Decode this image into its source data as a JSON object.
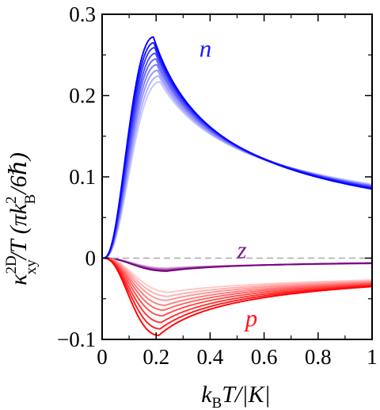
{
  "chart_data": {
    "type": "line",
    "xlabel": "k_B T/|K|",
    "ylabel": "κ_xy^2D/T (πk_B²/6ℏ)",
    "xlim": [
      0,
      1
    ],
    "ylim": [
      -0.1,
      0.3
    ],
    "x_ticks": [
      "0",
      "0.2",
      "0.4",
      "0.6",
      "0.8",
      "1"
    ],
    "y_ticks": [
      "−0.1",
      "0",
      "0.1",
      "0.2",
      "0.3"
    ],
    "x_tick_values": [
      0,
      0.2,
      0.4,
      0.6,
      0.8,
      1
    ],
    "y_tick_values": [
      -0.1,
      0,
      0.1,
      0.2,
      0.3
    ],
    "zero_line": {
      "y": 0,
      "style": "dashed",
      "color": "#aaaaaa"
    },
    "grid": false,
    "families": [
      {
        "label": "n",
        "color": "#0000ff",
        "label_color": "#1a1aff",
        "label_at": {
          "x": 0.36,
          "y": 0.248
        },
        "curves": [
          {
            "peak": 0.272,
            "peak_x": 0.19,
            "end": 0.085
          },
          {
            "peak": 0.265,
            "peak_x": 0.192,
            "end": 0.086
          },
          {
            "peak": 0.259,
            "peak_x": 0.195,
            "end": 0.087
          },
          {
            "peak": 0.252,
            "peak_x": 0.198,
            "end": 0.087
          },
          {
            "peak": 0.245,
            "peak_x": 0.2,
            "end": 0.088
          },
          {
            "peak": 0.238,
            "peak_x": 0.203,
            "end": 0.089
          },
          {
            "peak": 0.231,
            "peak_x": 0.206,
            "end": 0.089
          },
          {
            "peak": 0.224,
            "peak_x": 0.21,
            "end": 0.09
          },
          {
            "peak": 0.217,
            "peak_x": 0.214,
            "end": 0.091
          }
        ]
      },
      {
        "label": "z",
        "color": "#7a0080",
        "label_color": "#7a1a8a",
        "label_at": {
          "x": 0.5,
          "y": 0.0
        },
        "curves": [
          {
            "peak": -0.016,
            "peak_x": 0.24,
            "end": -0.006
          },
          {
            "peak": -0.015,
            "peak_x": 0.24,
            "end": -0.0062
          },
          {
            "peak": -0.014,
            "peak_x": 0.24,
            "end": -0.0064
          },
          {
            "peak": -0.013,
            "peak_x": 0.24,
            "end": -0.0066
          },
          {
            "peak": -0.012,
            "peak_x": 0.24,
            "end": -0.0068
          }
        ]
      },
      {
        "label": "p",
        "color": "#ff0000",
        "label_color": "#ff1a1a",
        "label_at": {
          "x": 0.53,
          "y": -0.084
        },
        "curves": [
          {
            "peak": -0.095,
            "peak_x": 0.21,
            "end": -0.035
          },
          {
            "peak": -0.087,
            "peak_x": 0.215,
            "end": -0.034
          },
          {
            "peak": -0.079,
            "peak_x": 0.22,
            "end": -0.033
          },
          {
            "peak": -0.071,
            "peak_x": 0.225,
            "end": -0.032
          },
          {
            "peak": -0.064,
            "peak_x": 0.23,
            "end": -0.031
          },
          {
            "peak": -0.058,
            "peak_x": 0.235,
            "end": -0.03
          },
          {
            "peak": -0.052,
            "peak_x": 0.24,
            "end": -0.029
          },
          {
            "peak": -0.047,
            "peak_x": 0.245,
            "end": -0.028
          },
          {
            "peak": -0.042,
            "peak_x": 0.25,
            "end": -0.027
          }
        ]
      }
    ]
  }
}
